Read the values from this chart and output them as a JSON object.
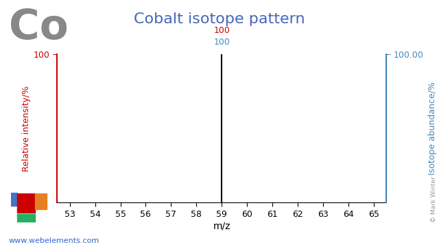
{
  "title": "Cobalt isotope pattern",
  "element_symbol": "Co",
  "xlabel": "m/z",
  "ylabel_left": "Relative intensity/%",
  "ylabel_right": "Isotope abundance/%",
  "xmin": 52.5,
  "xmax": 65.5,
  "ymin": 0,
  "ymax": 100,
  "xticks": [
    53,
    54,
    55,
    56,
    57,
    58,
    59,
    60,
    61,
    62,
    63,
    64,
    65
  ],
  "yticks_left": [
    100
  ],
  "ytick_labels_left": [
    "100"
  ],
  "yticks_right": [
    100
  ],
  "ytick_labels_right": [
    "100.00"
  ],
  "bar_positions": [
    59
  ],
  "bar_heights": [
    100
  ],
  "bar_color": "#000000",
  "annotation_top_color": "#cc0000",
  "annotation_bottom_color": "#4488bb",
  "annotation_top_text": "100",
  "annotation_bottom_text": "100",
  "title_color": "#4466bb",
  "title_fontsize": 16,
  "element_symbol_color": "#888888",
  "element_symbol_fontsize": 44,
  "ylabel_left_color": "#cc0000",
  "ylabel_right_color": "#4488bb",
  "left_axis_color": "#cc0000",
  "right_axis_color": "#4488bb",
  "website_text": "www.webelements.com",
  "website_color": "#3366cc",
  "copyright_text": "© Mark Winter",
  "background_color": "#ffffff"
}
